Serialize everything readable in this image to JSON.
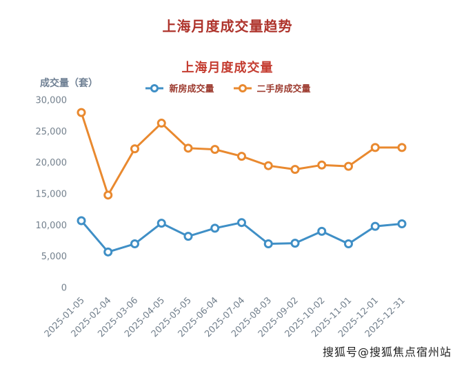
{
  "page": {
    "main_title": "上海月度成交量趋势",
    "watermark": "搜狐号@搜狐焦点宿州站"
  },
  "chart_data": {
    "type": "line",
    "title": "上海月度成交量",
    "xlabel": "",
    "ylabel": "成交量（套）",
    "ylim": [
      0,
      30000
    ],
    "yticks": [
      0,
      5000,
      10000,
      15000,
      20000,
      25000,
      30000
    ],
    "grid": false,
    "legend_position": "top",
    "marker": "hollow-circle",
    "categories": [
      "2025-01-05",
      "2025-02-04",
      "2025-03-06",
      "2025-04-05",
      "2025-05-05",
      "2025-06-04",
      "2025-07-04",
      "2025-08-03",
      "2025-09-02",
      "2025-10-02",
      "2025-11-01",
      "2025-12-01",
      "2025-12-31"
    ],
    "series": [
      {
        "key": "new-homes",
        "name": "新房成交量",
        "color": "#3f8fc6",
        "values": [
          10700,
          5700,
          7000,
          10300,
          8200,
          9500,
          10400,
          7000,
          7100,
          9000,
          7000,
          9800,
          10200
        ]
      },
      {
        "key": "second-hand",
        "name": "二手房成交量",
        "color": "#e9892f",
        "values": [
          28000,
          14800,
          22200,
          26300,
          22300,
          22100,
          21000,
          19500,
          18900,
          19600,
          19400,
          22400,
          22400
        ]
      }
    ]
  },
  "colors": {
    "main_title": "#ae332b",
    "subtitle": "#c43b2f",
    "legend_text": "#9c3a2e",
    "axis_text": "#73808d",
    "background": "#ffffff"
  }
}
